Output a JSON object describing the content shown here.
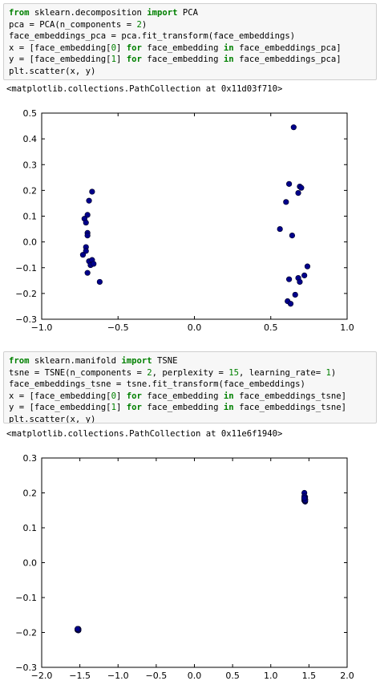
{
  "cells": [
    {
      "lines": [
        [
          {
            "t": "from",
            "c": "kw"
          },
          {
            "t": " sklearn.decomposition "
          },
          {
            "t": "import",
            "c": "kw"
          },
          {
            "t": " PCA"
          }
        ],
        [
          {
            "t": "pca = PCA(n_components = "
          },
          {
            "t": "2",
            "c": "num"
          },
          {
            "t": ")"
          }
        ],
        [
          {
            "t": "face_embeddings_pca = pca.fit_transform(face_embeddings)"
          }
        ],
        [
          {
            "t": "x = [face_embedding["
          },
          {
            "t": "0",
            "c": "num"
          },
          {
            "t": "] "
          },
          {
            "t": "for",
            "c": "kw"
          },
          {
            "t": " face_embedding "
          },
          {
            "t": "in",
            "c": "kw"
          },
          {
            "t": " face_embeddings_pca]"
          }
        ],
        [
          {
            "t": "y = [face_embedding["
          },
          {
            "t": "1",
            "c": "num"
          },
          {
            "t": "] "
          },
          {
            "t": "for",
            "c": "kw"
          },
          {
            "t": " face_embedding "
          },
          {
            "t": "in",
            "c": "kw"
          },
          {
            "t": " face_embeddings_pca]"
          }
        ],
        [
          {
            "t": "plt.scatter(x, y)"
          }
        ]
      ],
      "output": "<matplotlib.collections.PathCollection at 0x11d03f710>"
    },
    {
      "lines": [
        [
          {
            "t": "from",
            "c": "kw"
          },
          {
            "t": " sklearn.manifold "
          },
          {
            "t": "import",
            "c": "kw"
          },
          {
            "t": " TSNE"
          }
        ],
        [
          {
            "t": "tsne = TSNE(n_components = "
          },
          {
            "t": "2",
            "c": "num"
          },
          {
            "t": ", perplexity = "
          },
          {
            "t": "15",
            "c": "num"
          },
          {
            "t": ", learning_rate= "
          },
          {
            "t": "1",
            "c": "num"
          },
          {
            "t": ")"
          }
        ],
        [
          {
            "t": "face_embeddings_tsne = tsne.fit_transform(face_embeddings)"
          }
        ],
        [
          {
            "t": "x = [face_embedding["
          },
          {
            "t": "0",
            "c": "num"
          },
          {
            "t": "] "
          },
          {
            "t": "for",
            "c": "kw"
          },
          {
            "t": " face_embedding "
          },
          {
            "t": "in",
            "c": "kw"
          },
          {
            "t": " face_embeddings_tsne]"
          }
        ],
        [
          {
            "t": "y = [face_embedding["
          },
          {
            "t": "1",
            "c": "num"
          },
          {
            "t": "] "
          },
          {
            "t": "for",
            "c": "kw"
          },
          {
            "t": " face_embedding "
          },
          {
            "t": "in",
            "c": "kw"
          },
          {
            "t": " face_embeddings_tsne]"
          }
        ],
        [
          {
            "t": "plt.scatter(x, y)"
          }
        ]
      ],
      "output": "<matplotlib.collections.PathCollection at 0x11e6f1940>"
    }
  ],
  "colors": {
    "keyword": "#008000",
    "marker": "#00008b",
    "cell_bg": "#f7f7f7"
  },
  "chart_data": [
    {
      "type": "scatter",
      "xlim": [
        -1.0,
        1.0
      ],
      "ylim": [
        -0.3,
        0.5
      ],
      "xticks": [
        -1.0,
        -0.5,
        0.0,
        0.5,
        1.0
      ],
      "xtick_labels": [
        "−1.0",
        "−0.5",
        "0.0",
        "0.5",
        "1.0"
      ],
      "yticks": [
        -0.3,
        -0.2,
        -0.1,
        0.0,
        0.1,
        0.2,
        0.3,
        0.4,
        0.5
      ],
      "ytick_labels": [
        "−0.3",
        "−0.2",
        "−0.1",
        "0.0",
        "0.1",
        "0.2",
        "0.3",
        "0.4",
        "0.5"
      ],
      "grid": false,
      "x": [
        -0.67,
        -0.69,
        -0.7,
        -0.72,
        -0.71,
        -0.7,
        -0.7,
        -0.71,
        -0.73,
        -0.71,
        -0.69,
        -0.67,
        -0.68,
        -0.66,
        -0.7,
        -0.62,
        0.65,
        0.62,
        0.69,
        0.68,
        0.7,
        0.6,
        0.56,
        0.64,
        0.74,
        0.68,
        0.72,
        0.69,
        0.62,
        0.66,
        0.61,
        0.63
      ],
      "y": [
        0.195,
        0.16,
        0.105,
        0.09,
        0.075,
        0.035,
        0.025,
        -0.02,
        -0.05,
        -0.035,
        -0.075,
        -0.07,
        -0.09,
        -0.085,
        -0.12,
        -0.155,
        0.445,
        0.225,
        0.215,
        0.19,
        0.21,
        0.155,
        0.05,
        0.025,
        -0.095,
        -0.14,
        -0.13,
        -0.155,
        -0.145,
        -0.205,
        -0.23,
        -0.24
      ]
    },
    {
      "type": "scatter",
      "xlim": [
        -2.0,
        2.0
      ],
      "ylim": [
        -0.3,
        0.3
      ],
      "xticks": [
        -2.0,
        -1.5,
        -1.0,
        -0.5,
        0.0,
        0.5,
        1.0,
        1.5,
        2.0
      ],
      "xtick_labels": [
        "−2.0",
        "−1.5",
        "−1.0",
        "−0.5",
        "0.0",
        "0.5",
        "1.0",
        "1.5",
        "2.0"
      ],
      "yticks": [
        -0.3,
        -0.2,
        -0.1,
        0.0,
        0.1,
        0.2,
        0.3
      ],
      "ytick_labels": [
        "−0.3",
        "−0.2",
        "−0.1",
        "0.0",
        "0.1",
        "0.2",
        "0.3"
      ],
      "grid": false,
      "x": [
        1.44,
        1.45,
        1.44,
        1.45,
        1.44,
        1.45,
        1.44,
        1.45,
        1.44,
        1.45,
        1.44,
        1.45,
        1.45,
        1.44,
        1.45,
        1.44,
        -1.52,
        -1.53,
        -1.52,
        -1.53,
        -1.52,
        -1.53,
        -1.52,
        -1.53,
        -1.52,
        -1.53,
        -1.52,
        -1.53,
        -1.52,
        -1.53,
        -1.52,
        -1.53
      ],
      "y": [
        0.2,
        0.188,
        0.183,
        0.18,
        0.178,
        0.176,
        0.186,
        0.181,
        0.179,
        0.175,
        0.184,
        0.177,
        0.182,
        0.19,
        0.179,
        0.185,
        -0.19,
        -0.192,
        -0.193,
        -0.191,
        -0.194,
        -0.19,
        -0.192,
        -0.193,
        -0.191,
        -0.192,
        -0.19,
        -0.193,
        -0.194,
        -0.191,
        -0.192,
        -0.19
      ]
    }
  ]
}
